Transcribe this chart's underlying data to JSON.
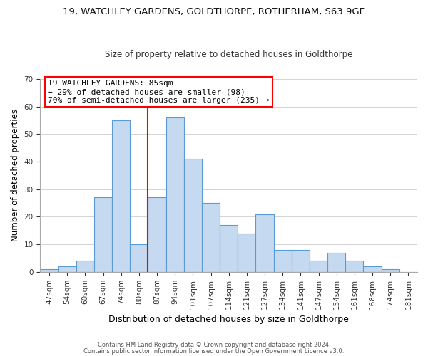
{
  "title": "19, WATCHLEY GARDENS, GOLDTHORPE, ROTHERHAM, S63 9GF",
  "subtitle": "Size of property relative to detached houses in Goldthorpe",
  "xlabel": "Distribution of detached houses by size in Goldthorpe",
  "ylabel": "Number of detached properties",
  "bar_labels": [
    "47sqm",
    "54sqm",
    "60sqm",
    "67sqm",
    "74sqm",
    "80sqm",
    "87sqm",
    "94sqm",
    "101sqm",
    "107sqm",
    "114sqm",
    "121sqm",
    "127sqm",
    "134sqm",
    "141sqm",
    "147sqm",
    "154sqm",
    "161sqm",
    "168sqm",
    "174sqm",
    "181sqm"
  ],
  "bar_values": [
    1,
    2,
    4,
    27,
    55,
    10,
    27,
    56,
    41,
    25,
    17,
    14,
    21,
    8,
    8,
    4,
    7,
    4,
    2,
    1,
    0
  ],
  "bar_color": "#c5d9f0",
  "bar_edge_color": "#5b9bd5",
  "vline_x": 5.5,
  "vline_color": "red",
  "ylim": [
    0,
    70
  ],
  "yticks": [
    0,
    10,
    20,
    30,
    40,
    50,
    60,
    70
  ],
  "annotation_title": "19 WATCHLEY GARDENS: 85sqm",
  "annotation_line1": "← 29% of detached houses are smaller (98)",
  "annotation_line2": "70% of semi-detached houses are larger (235) →",
  "annotation_box_color": "#ffffff",
  "annotation_box_edge": "red",
  "footer1": "Contains HM Land Registry data © Crown copyright and database right 2024.",
  "footer2": "Contains public sector information licensed under the Open Government Licence v3.0."
}
